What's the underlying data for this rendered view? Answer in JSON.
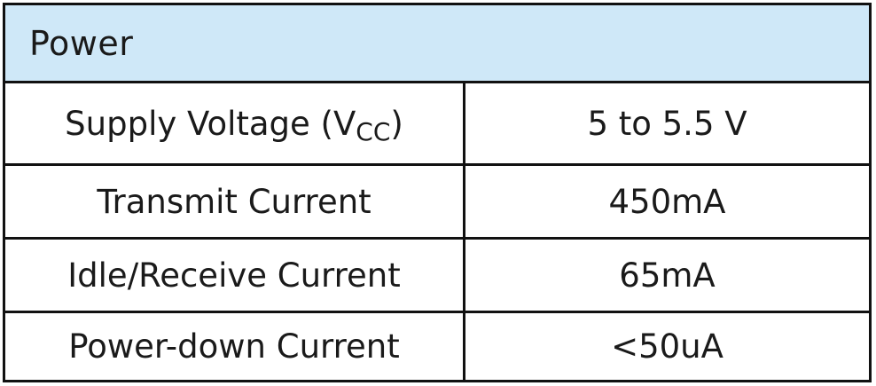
{
  "table": {
    "header": "Power",
    "rows": [
      {
        "label_main": "Supply Voltage (V",
        "label_sub": "CC",
        "label_close": ")",
        "value": "5 to 5.5 V"
      },
      {
        "label": "Transmit Current",
        "value": "450mA"
      },
      {
        "label": "Idle/Receive Current",
        "value": "65mA"
      },
      {
        "label": "Power-down Current",
        "value": "<50uA"
      }
    ]
  },
  "colors": {
    "header_background": "#cfe8f8",
    "border": "#111111",
    "text": "#1a1a1a"
  }
}
